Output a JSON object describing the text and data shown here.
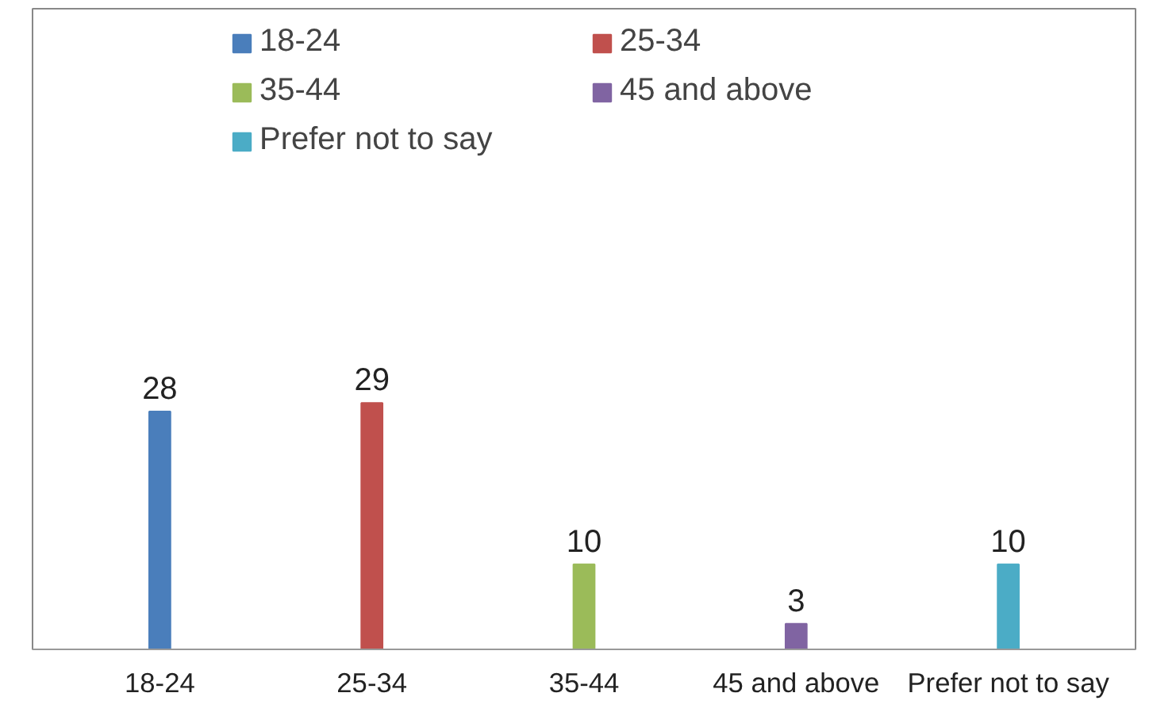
{
  "chart_data": {
    "type": "bar",
    "categories": [
      "18-24",
      "25-34",
      "35-44",
      "45 and above",
      "Prefer not to say"
    ],
    "series": [
      {
        "name": "18-24",
        "color": "#4a7ebb",
        "values": [
          28,
          null,
          null,
          null,
          null
        ]
      },
      {
        "name": "25-34",
        "color": "#c0504d",
        "values": [
          null,
          29,
          null,
          null,
          null
        ]
      },
      {
        "name": "35-44",
        "color": "#9bbb59",
        "values": [
          null,
          null,
          10,
          null,
          null
        ]
      },
      {
        "name": "45 and above",
        "color": "#8064a2",
        "values": [
          null,
          null,
          null,
          3,
          null
        ]
      },
      {
        "name": "Prefer not to say",
        "color": "#4bacc6",
        "values": [
          null,
          null,
          null,
          null,
          10
        ]
      }
    ],
    "data_labels": true,
    "legend": "top"
  }
}
